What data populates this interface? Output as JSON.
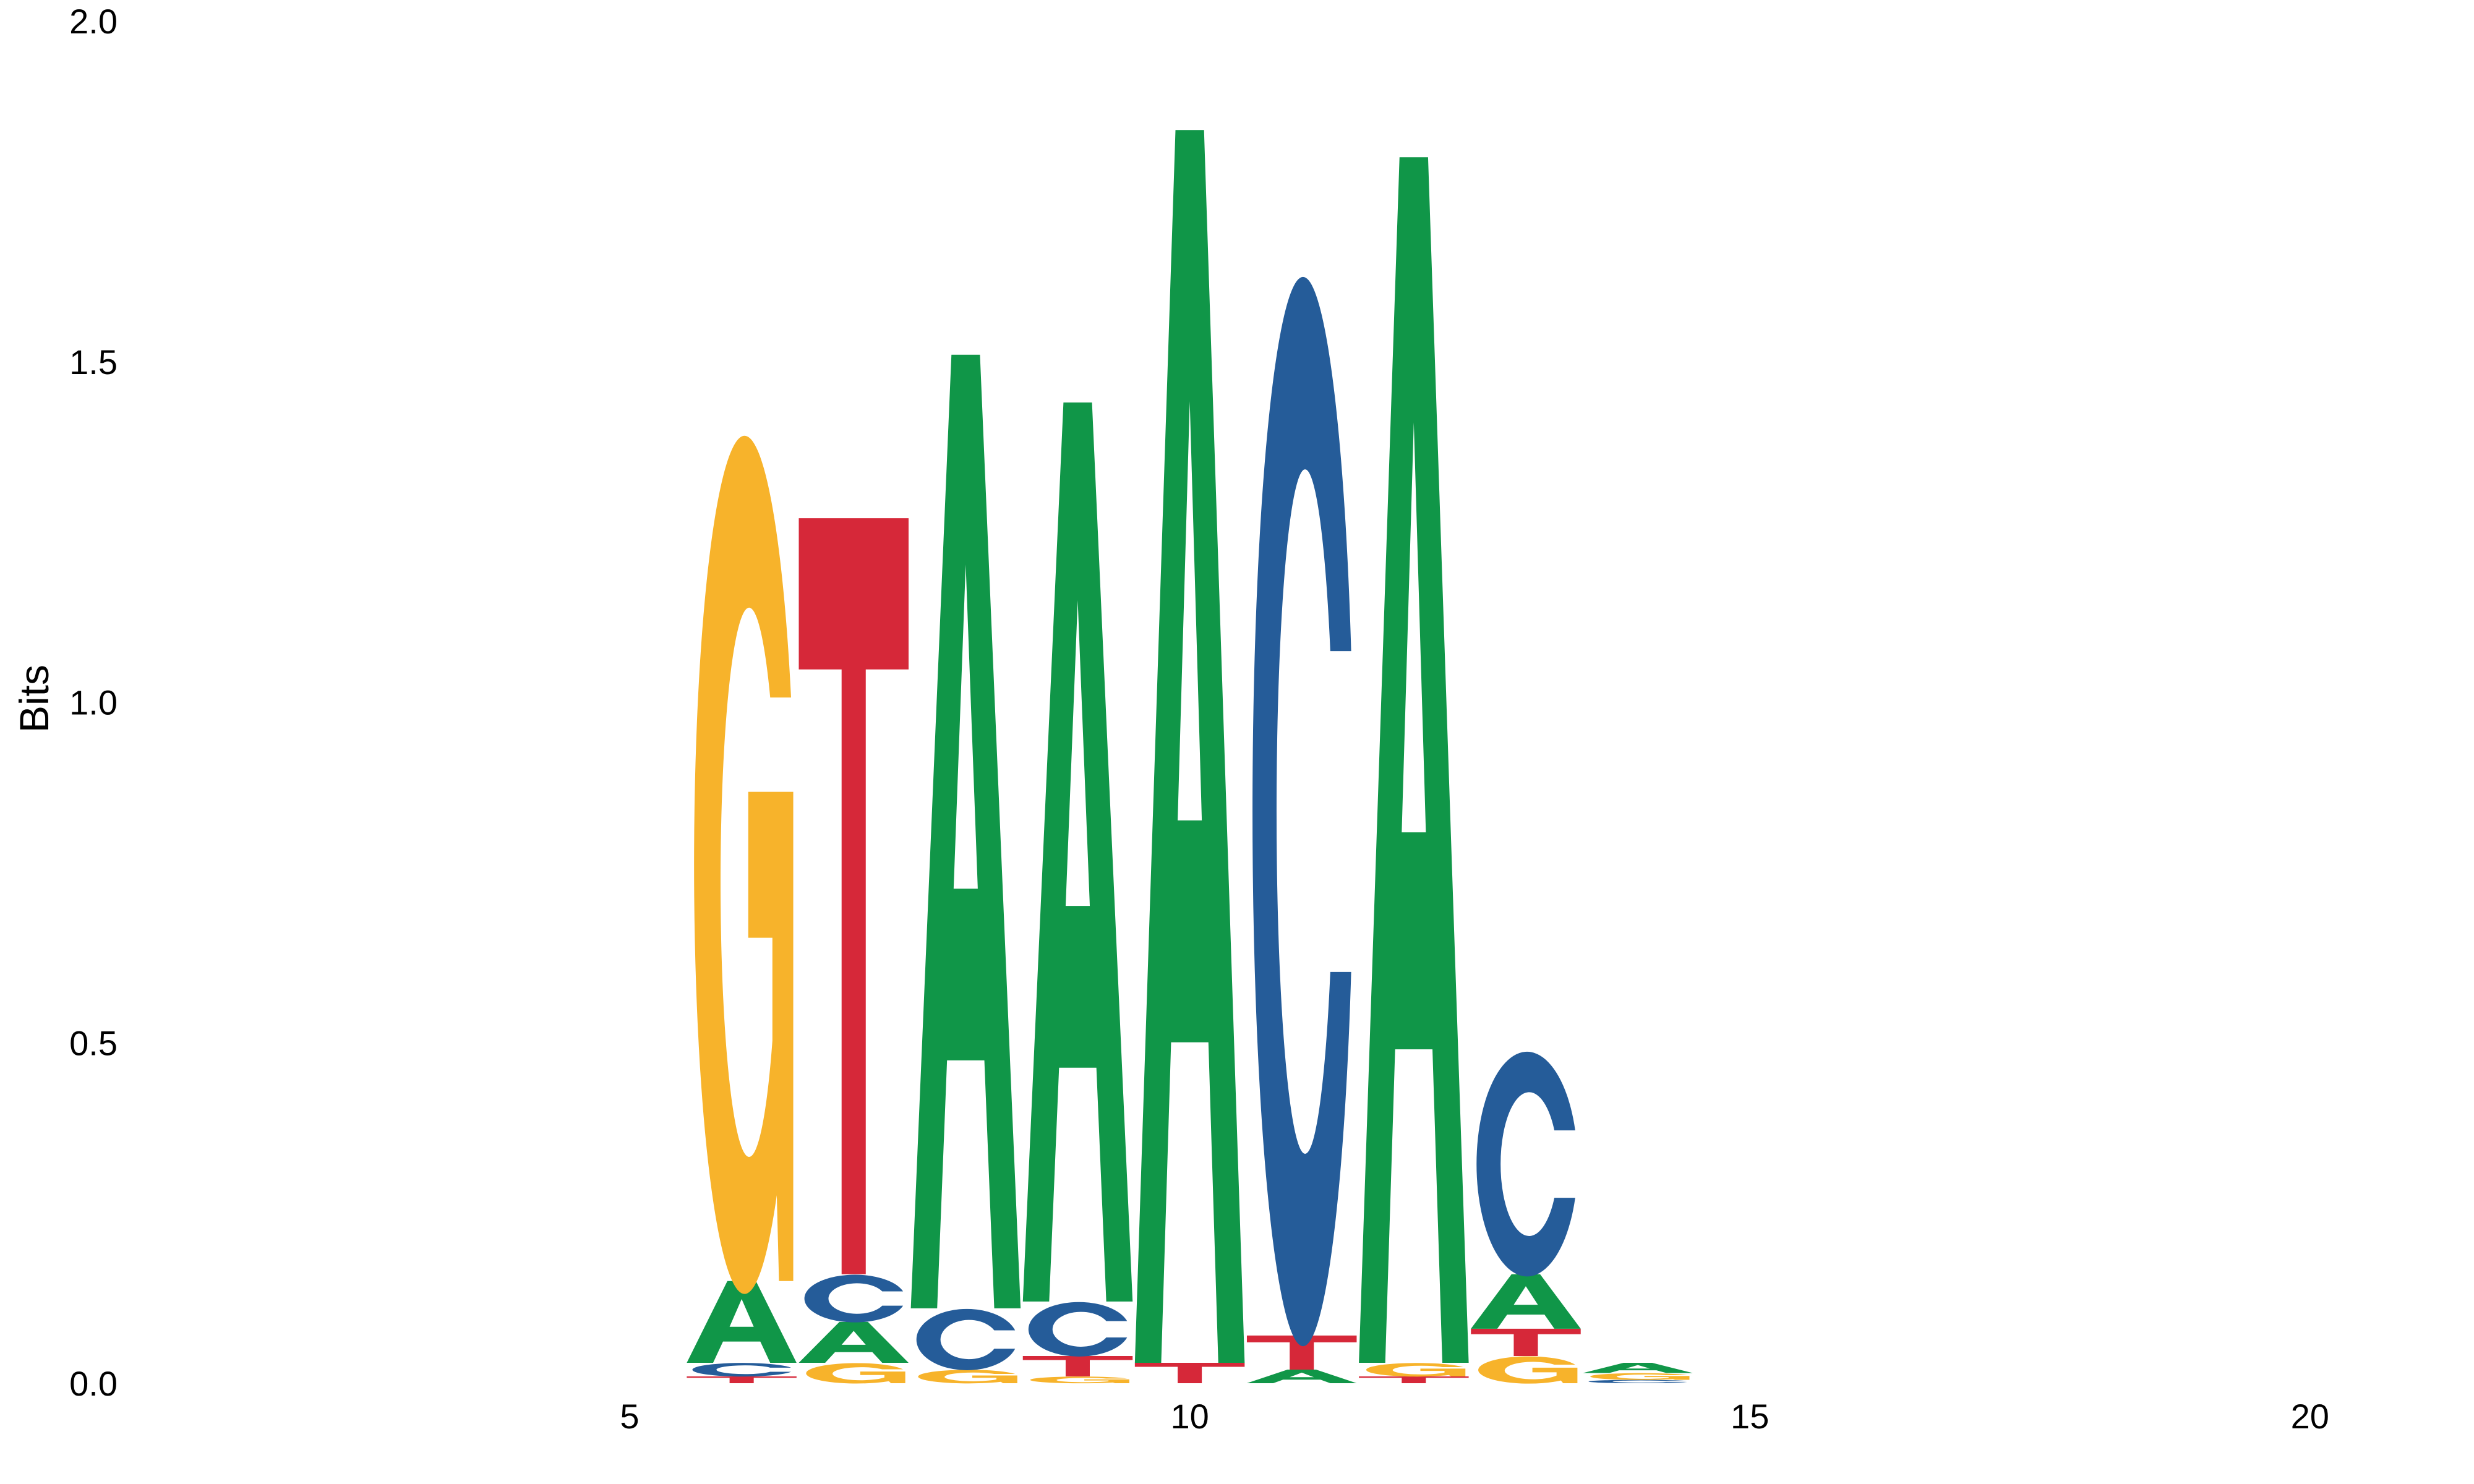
{
  "chart_data": {
    "type": "sequence-logo",
    "ylabel": "Bits",
    "ylim": [
      0,
      2.0
    ],
    "xlim": [
      0,
      21
    ],
    "yticks": [
      "0.0",
      "0.5",
      "1.0",
      "1.5",
      "2.0"
    ],
    "xticks": [
      "5",
      "10",
      "15",
      "20"
    ],
    "colors": {
      "A": "#109648",
      "C": "#255C99",
      "G": "#F7B32B",
      "T": "#D62839"
    },
    "positions": [
      {
        "pos": 6,
        "letters": [
          {
            "base": "T",
            "bits": 0.01
          },
          {
            "base": "C",
            "bits": 0.02
          },
          {
            "base": "A",
            "bits": 0.12
          },
          {
            "base": "G",
            "bits": 1.26
          }
        ]
      },
      {
        "pos": 7,
        "letters": [
          {
            "base": "G",
            "bits": 0.03
          },
          {
            "base": "A",
            "bits": 0.06
          },
          {
            "base": "C",
            "bits": 0.07
          },
          {
            "base": "T",
            "bits": 1.11
          }
        ]
      },
      {
        "pos": 8,
        "letters": [
          {
            "base": "G",
            "bits": 0.02
          },
          {
            "base": "C",
            "bits": 0.09
          },
          {
            "base": "A",
            "bits": 1.4
          }
        ]
      },
      {
        "pos": 9,
        "letters": [
          {
            "base": "G",
            "bits": 0.01
          },
          {
            "base": "T",
            "bits": 0.03
          },
          {
            "base": "C",
            "bits": 0.08
          },
          {
            "base": "A",
            "bits": 1.32
          }
        ]
      },
      {
        "pos": 10,
        "letters": [
          {
            "base": "T",
            "bits": 0.03
          },
          {
            "base": "A",
            "bits": 1.81
          }
        ]
      },
      {
        "pos": 11,
        "letters": [
          {
            "base": "A",
            "bits": 0.02
          },
          {
            "base": "T",
            "bits": 0.05
          },
          {
            "base": "C",
            "bits": 1.57
          }
        ]
      },
      {
        "pos": 12,
        "letters": [
          {
            "base": "T",
            "bits": 0.01
          },
          {
            "base": "G",
            "bits": 0.02
          },
          {
            "base": "A",
            "bits": 1.77
          }
        ]
      },
      {
        "pos": 13,
        "letters": [
          {
            "base": "G",
            "bits": 0.04
          },
          {
            "base": "T",
            "bits": 0.04
          },
          {
            "base": "A",
            "bits": 0.08
          },
          {
            "base": "C",
            "bits": 0.33
          }
        ]
      },
      {
        "pos": 14,
        "letters": [
          {
            "base": "C",
            "bits": 0.005
          },
          {
            "base": "G",
            "bits": 0.01
          },
          {
            "base": "A",
            "bits": 0.015
          }
        ]
      }
    ]
  }
}
